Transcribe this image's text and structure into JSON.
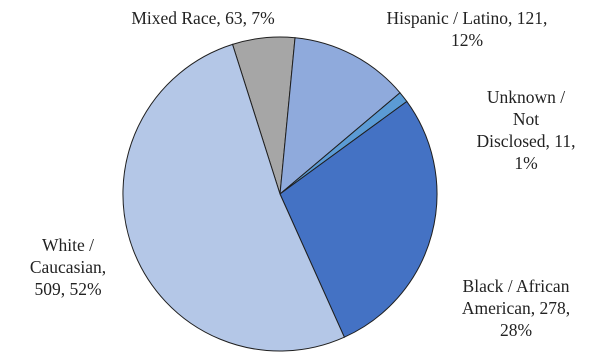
{
  "chart_data": {
    "type": "pie",
    "title": "",
    "start_angle_deg": -17.6,
    "direction": "clockwise",
    "slices": [
      {
        "name": "Mixed Race",
        "value": 63,
        "percent": "7%",
        "color": "#a6a6a6",
        "label_lines": [
          "Mixed Race, 63, 7%"
        ]
      },
      {
        "name": "Hispanic / Latino",
        "value": 121,
        "percent": "12%",
        "color": "#8faadc",
        "label_lines": [
          "Hispanic / Latino, 121,",
          "12%"
        ]
      },
      {
        "name": "Unknown / Not Disclosed",
        "value": 11,
        "percent": "1%",
        "color": "#5b9bd5",
        "label_lines": [
          "Unknown /",
          "Not",
          "Disclosed, 11,",
          "1%"
        ]
      },
      {
        "name": "Black / African American",
        "value": 278,
        "percent": "28%",
        "color": "#4472c4",
        "label_lines": [
          "Black / African",
          "American, 278,",
          "28%"
        ]
      },
      {
        "name": "White / Caucasian",
        "value": 509,
        "percent": "52%",
        "color": "#b4c7e7",
        "label_lines": [
          "White /",
          "Caucasian,",
          "509, 52%"
        ]
      }
    ]
  }
}
